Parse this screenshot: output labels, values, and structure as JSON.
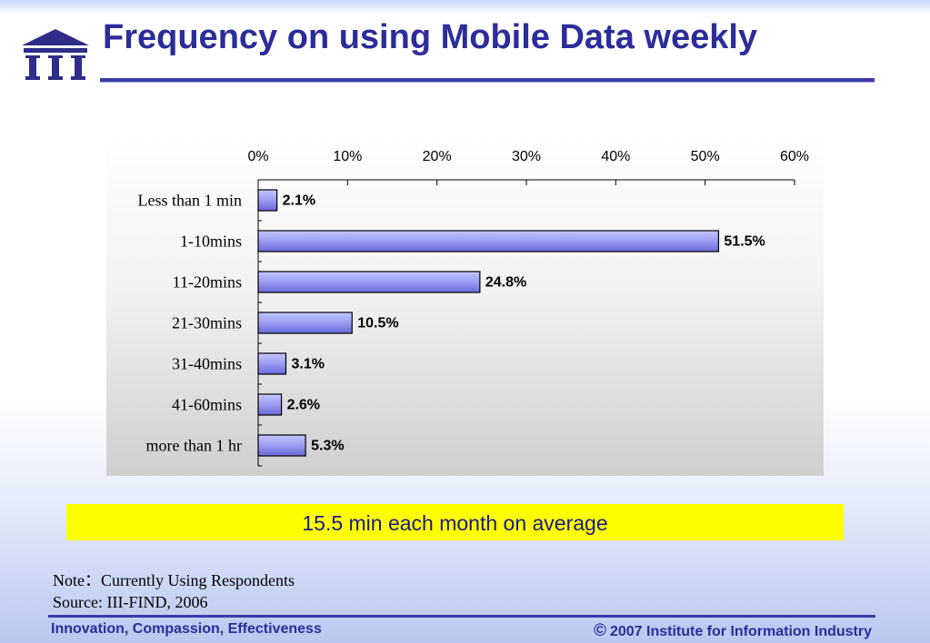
{
  "title": "Frequency on using Mobile Data weekly",
  "banner": "15.5 min each month on average",
  "note_line1": "Note：Currently Using Respondents",
  "note_line2": "Source: III-FIND, 2006",
  "footer": {
    "left": "Innovation, Compassion, Effectiveness",
    "copyright_symbol": "©",
    "right": "2007 Institute for Information Industry"
  },
  "logo": {
    "text": "III",
    "icon": "building-columns-icon"
  },
  "colors": {
    "title": "#2b2d99",
    "bar_fill_light": "#c4c6ff",
    "bar_fill_dark": "#6a6ad8",
    "bar_stroke": "#000000",
    "banner_bg": "#ffff00",
    "banner_text": "#1a1a8c"
  },
  "chart_data": {
    "type": "bar",
    "orientation": "horizontal",
    "categories": [
      "Less than 1 min",
      "1-10mins",
      "11-20mins",
      "21-30mins",
      "31-40mins",
      "41-60mins",
      "more than 1 hr"
    ],
    "values": [
      2.1,
      51.5,
      24.8,
      10.5,
      3.1,
      2.6,
      5.3
    ],
    "value_labels": [
      "2.1%",
      "51.5%",
      "24.8%",
      "10.5%",
      "3.1%",
      "2.6%",
      "5.3%"
    ],
    "xlim": [
      0,
      60
    ],
    "x_ticks": [
      0,
      10,
      20,
      30,
      40,
      50,
      60
    ],
    "x_tick_labels": [
      "0%",
      "10%",
      "20%",
      "30%",
      "40%",
      "50%",
      "60%"
    ],
    "x_axis_position": "top",
    "grid": false,
    "legend": "none",
    "title": "",
    "xlabel": "",
    "ylabel": ""
  }
}
